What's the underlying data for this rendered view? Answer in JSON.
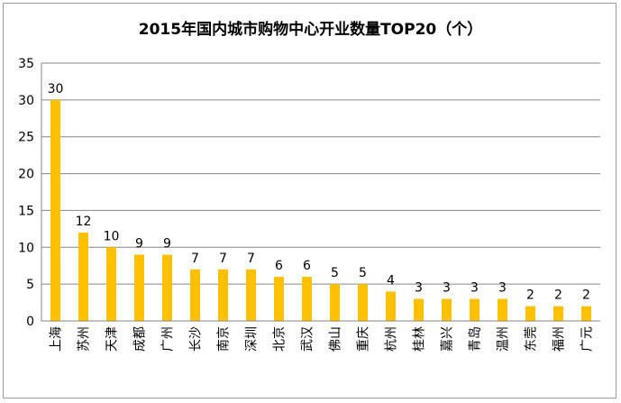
{
  "chart_data": {
    "type": "bar",
    "title": "2015年国内城市购物中心开业数量TOP20（个）",
    "categories": [
      "上海",
      "苏州",
      "天津",
      "成都",
      "广州",
      "长沙",
      "南京",
      "深圳",
      "北京",
      "武汉",
      "佛山",
      "重庆",
      "杭州",
      "桂林",
      "嘉兴",
      "青岛",
      "温州",
      "东莞",
      "福州",
      "广元"
    ],
    "values": [
      30,
      12,
      10,
      9,
      9,
      7,
      7,
      7,
      6,
      6,
      5,
      5,
      4,
      3,
      3,
      3,
      3,
      2,
      2,
      2
    ],
    "ylim": [
      0,
      35
    ],
    "yticks": [
      0,
      5,
      10,
      15,
      20,
      25,
      30,
      35
    ],
    "xlabel": "",
    "ylabel": "",
    "grid": true,
    "legend": "none",
    "bar_color": "#FFC000",
    "grid_color": "#868686"
  }
}
